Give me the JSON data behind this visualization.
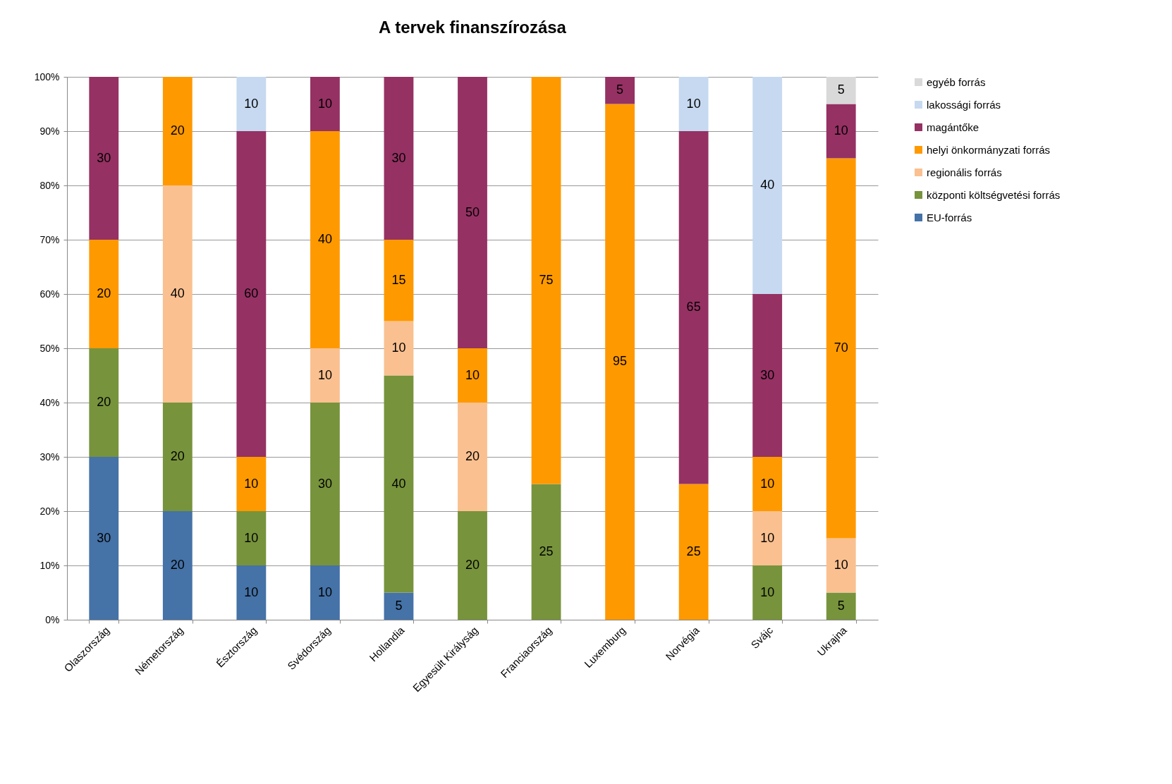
{
  "chart_data": {
    "type": "bar",
    "title": "A tervek finanszírozása",
    "stacked": true,
    "data_labels": true,
    "legend": "right",
    "grid": "y",
    "categories": [
      "Olaszország",
      "Németország",
      "Észtország",
      "Svédország",
      "Hollandia",
      "Egyesült Királyság",
      "Franciaország",
      "Luxemburg",
      "Norvégia",
      "Svájc",
      "Ukrajna"
    ],
    "ylim": [
      0,
      100
    ],
    "yticks": [
      {
        "value": 0,
        "label": "0%"
      },
      {
        "value": 10,
        "label": "10%"
      },
      {
        "value": 20,
        "label": "20%"
      },
      {
        "value": 30,
        "label": "30%"
      },
      {
        "value": 40,
        "label": "40%"
      },
      {
        "value": 50,
        "label": "50%"
      },
      {
        "value": 60,
        "label": "60%"
      },
      {
        "value": 70,
        "label": "70%"
      },
      {
        "value": 80,
        "label": "80%"
      },
      {
        "value": 90,
        "label": "90%"
      },
      {
        "value": 100,
        "label": "100%"
      }
    ],
    "series": [
      {
        "name": "EU-forrás",
        "color": "#4572a7",
        "values": [
          30,
          20,
          10,
          10,
          5,
          null,
          null,
          null,
          null,
          null,
          null
        ]
      },
      {
        "name": "központi költségvetési forrás",
        "color": "#77933c",
        "values": [
          20,
          20,
          10,
          30,
          40,
          20,
          25,
          null,
          null,
          10,
          5
        ]
      },
      {
        "name": "regionális forrás",
        "color": "#fac090",
        "values": [
          null,
          40,
          null,
          10,
          10,
          20,
          null,
          null,
          null,
          10,
          10
        ]
      },
      {
        "name": "helyi önkormányzati forrás",
        "color": "#ff9900",
        "values": [
          20,
          20,
          10,
          40,
          15,
          10,
          75,
          95,
          25,
          10,
          70
        ]
      },
      {
        "name": "magántőke",
        "color": "#953163",
        "values": [
          30,
          null,
          60,
          10,
          30,
          50,
          null,
          5,
          65,
          30,
          10
        ]
      },
      {
        "name": "lakossági forrás",
        "color": "#c6d9f1",
        "values": [
          null,
          null,
          10,
          null,
          null,
          null,
          null,
          null,
          10,
          40,
          null
        ]
      },
      {
        "name": "egyéb forrás",
        "color": "#d9d9d9",
        "values": [
          null,
          null,
          null,
          null,
          null,
          null,
          null,
          null,
          null,
          null,
          5
        ]
      }
    ]
  }
}
